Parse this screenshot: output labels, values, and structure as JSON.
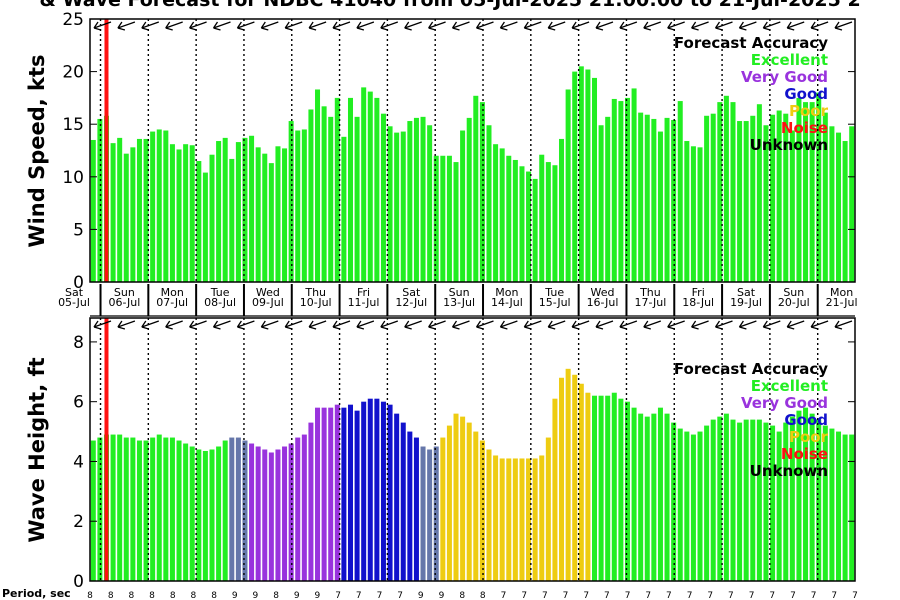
{
  "title": "& Wave Forecast for NDBC 41040 from 05-Jul-2025 21:00:00 to 21-Jul-2025 2",
  "period_label": "Period, sec",
  "colors": {
    "excellent": "#22ee22",
    "very_good": "#9933dd",
    "good": "#1111cc",
    "poor": "#eecc11",
    "noise": "#ff1111",
    "unknown": "#000000",
    "transition": "#6677aa"
  },
  "legend": {
    "title": "Forecast Accuracy",
    "items": [
      {
        "label": "Excellent",
        "color": "#22ee22"
      },
      {
        "label": "Very Good",
        "color": "#9933dd"
      },
      {
        "label": "Good",
        "color": "#1111cc"
      },
      {
        "label": "Poor",
        "color": "#eecc11"
      },
      {
        "label": "Noise",
        "color": "#ff1111"
      },
      {
        "label": "Unknown",
        "color": "#000000"
      }
    ]
  },
  "day_labels": [
    {
      "dow": "Sat",
      "date": "05-Jul"
    },
    {
      "dow": "Sun",
      "date": "06-Jul"
    },
    {
      "dow": "Mon",
      "date": "07-Jul"
    },
    {
      "dow": "Tue",
      "date": "08-Jul"
    },
    {
      "dow": "Wed",
      "date": "09-Jul"
    },
    {
      "dow": "Thu",
      "date": "10-Jul"
    },
    {
      "dow": "Fri",
      "date": "11-Jul"
    },
    {
      "dow": "Sat",
      "date": "12-Jul"
    },
    {
      "dow": "Sun",
      "date": "13-Jul"
    },
    {
      "dow": "Mon",
      "date": "14-Jul"
    },
    {
      "dow": "Tue",
      "date": "15-Jul"
    },
    {
      "dow": "Wed",
      "date": "16-Jul"
    },
    {
      "dow": "Thu",
      "date": "17-Jul"
    },
    {
      "dow": "Fri",
      "date": "18-Jul"
    },
    {
      "dow": "Sat",
      "date": "19-Jul"
    },
    {
      "dow": "Sun",
      "date": "20-Jul"
    },
    {
      "dow": "Mon",
      "date": "21-Jul"
    }
  ],
  "chart_data": [
    {
      "type": "bar",
      "ylabel": "Wind Speed, kts",
      "ylim": [
        0,
        25
      ],
      "yticks": [
        0,
        5,
        10,
        15,
        20,
        25
      ],
      "values": [
        13.5,
        15.5,
        15.8,
        13.2,
        13.7,
        12.2,
        12.8,
        13.6,
        13.6,
        14.3,
        14.5,
        14.4,
        13.1,
        12.6,
        13.1,
        13.0,
        11.5,
        10.4,
        12.1,
        13.4,
        13.7,
        11.7,
        13.3,
        13.7,
        13.9,
        12.8,
        12.2,
        11.3,
        12.9,
        12.7,
        15.3,
        14.4,
        14.5,
        16.4,
        18.3,
        16.7,
        15.7,
        17.5,
        13.8,
        17.5,
        15.7,
        18.5,
        18.1,
        17.5,
        16.0,
        14.8,
        14.2,
        14.3,
        15.3,
        15.6,
        15.7,
        14.9,
        12.0,
        12.0,
        12.0,
        11.4,
        14.4,
        15.6,
        17.7,
        17.1,
        14.9,
        13.1,
        12.7,
        12.0,
        11.6,
        11.0,
        10.5,
        9.8,
        12.1,
        11.4,
        11.1,
        13.6,
        18.3,
        20.0,
        20.5,
        20.2,
        19.4,
        14.9,
        15.7,
        17.4,
        17.2,
        17.5,
        18.4,
        16.1,
        15.9,
        15.5,
        14.3,
        15.6,
        15.4,
        17.2,
        13.4,
        12.9,
        12.8,
        15.8,
        16.0,
        17.1,
        17.7,
        17.1,
        15.3,
        15.3,
        15.8,
        16.9,
        14.9,
        15.9,
        16.3,
        16.0,
        14.4,
        17.5,
        17.1,
        17.1,
        18.0,
        16.1,
        14.8,
        14.2,
        13.4,
        14.8
      ],
      "direction_arrows": true,
      "noise_marker_index": 2
    },
    {
      "type": "bar",
      "ylabel": "Wave Height, ft",
      "ylim": [
        0,
        8.8
      ],
      "yticks": [
        0,
        2,
        4,
        6,
        8
      ],
      "values": [
        4.7,
        4.8,
        4.9,
        4.9,
        4.9,
        4.8,
        4.8,
        4.7,
        4.7,
        4.8,
        4.9,
        4.8,
        4.8,
        4.7,
        4.6,
        4.5,
        4.4,
        4.35,
        4.4,
        4.5,
        4.7,
        4.8,
        4.8,
        4.7,
        4.6,
        4.5,
        4.4,
        4.3,
        4.4,
        4.5,
        4.6,
        4.8,
        4.9,
        5.3,
        5.8,
        5.8,
        5.8,
        5.9,
        5.8,
        5.9,
        5.7,
        6.0,
        6.1,
        6.1,
        6.0,
        5.9,
        5.6,
        5.3,
        5.0,
        4.8,
        4.5,
        4.4,
        4.5,
        4.8,
        5.2,
        5.6,
        5.5,
        5.3,
        5.0,
        4.7,
        4.4,
        4.2,
        4.1,
        4.1,
        4.1,
        4.1,
        4.1,
        4.1,
        4.2,
        4.8,
        6.1,
        6.8,
        7.1,
        6.9,
        6.6,
        6.3,
        6.2,
        6.2,
        6.2,
        6.3,
        6.1,
        6.0,
        5.8,
        5.6,
        5.5,
        5.6,
        5.8,
        5.6,
        5.3,
        5.1,
        5.0,
        4.9,
        5.0,
        5.2,
        5.4,
        5.5,
        5.6,
        5.4,
        5.3,
        5.4,
        5.4,
        5.4,
        5.3,
        5.2,
        5.0,
        5.3,
        5.5,
        5.7,
        5.8,
        5.6,
        5.4,
        5.2,
        5.1,
        5.0,
        4.9,
        4.9
      ],
      "color_pattern": [
        "E",
        "E",
        "E",
        "E",
        "E",
        "E",
        "E",
        "E",
        "E",
        "E",
        "E",
        "E",
        "E",
        "E",
        "E",
        "E",
        "E",
        "E",
        "E",
        "E",
        "E",
        "T",
        "T",
        "T",
        "V",
        "V",
        "V",
        "V",
        "V",
        "V",
        "V",
        "V",
        "V",
        "V",
        "V",
        "V",
        "V",
        "V",
        "G",
        "G",
        "G",
        "G",
        "G",
        "G",
        "G",
        "G",
        "G",
        "G",
        "G",
        "G",
        "T",
        "T",
        "T",
        "P",
        "P",
        "P",
        "P",
        "P",
        "P",
        "P",
        "P",
        "P",
        "P",
        "P",
        "P",
        "P",
        "P",
        "P",
        "P",
        "P",
        "P",
        "P",
        "P",
        "P",
        "P",
        "P",
        "E",
        "E",
        "E",
        "E",
        "E",
        "E",
        "E",
        "E",
        "E",
        "E",
        "E",
        "E",
        "E",
        "E",
        "E",
        "E",
        "E",
        "E",
        "E",
        "E",
        "E",
        "E",
        "E",
        "E",
        "E",
        "E",
        "E",
        "E",
        "E",
        "E",
        "E",
        "E",
        "E",
        "E",
        "E",
        "E",
        "E",
        "E",
        "E",
        "E"
      ],
      "direction_arrows": true,
      "noise_marker_index": 2
    }
  ],
  "period_values": [
    "8",
    "8",
    "8",
    "8",
    "8",
    "8",
    "8",
    "9",
    "9",
    "8",
    "9",
    "9",
    "7",
    "7",
    "7",
    "7",
    "9",
    "9",
    "8",
    "8",
    "7",
    "7",
    "7",
    "7",
    "7",
    "7",
    "7",
    "7",
    "7",
    "7",
    "7",
    "7",
    "7",
    "7",
    "7",
    "7",
    "7",
    "7"
  ]
}
